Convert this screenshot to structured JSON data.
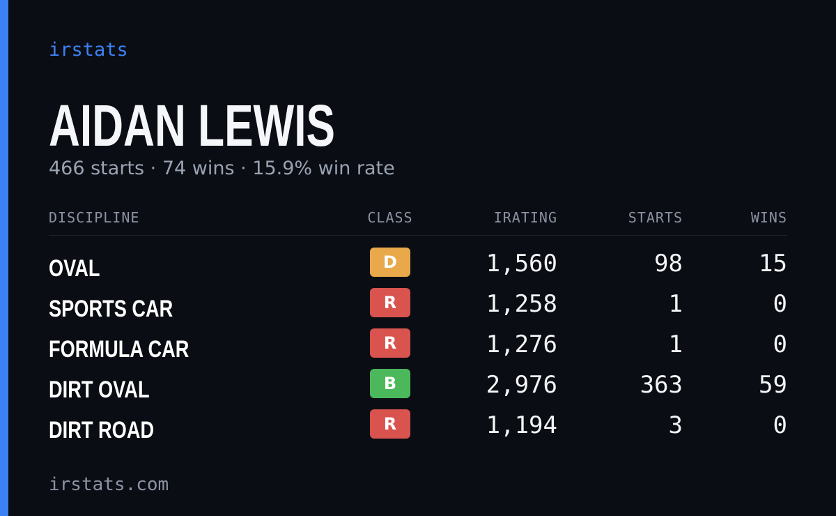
{
  "brand": "irstats",
  "driver": {
    "name": "AIDAN LEWIS",
    "summary": "466 starts · 74 wins · 15.9% win rate"
  },
  "table": {
    "headers": [
      "DISCIPLINE",
      "CLASS",
      "IRATING",
      "STARTS",
      "WINS"
    ],
    "rows": [
      [
        "OVAL",
        "D",
        "1,560",
        "98",
        "15"
      ],
      [
        "SPORTS CAR",
        "R",
        "1,258",
        "1",
        "0"
      ],
      [
        "FORMULA CAR",
        "R",
        "1,276",
        "1",
        "0"
      ],
      [
        "DIRT OVAL",
        "B",
        "2,976",
        "363",
        "59"
      ],
      [
        "DIRT ROAD",
        "R",
        "1,194",
        "3",
        "0"
      ]
    ]
  },
  "footer": "irstats.com"
}
